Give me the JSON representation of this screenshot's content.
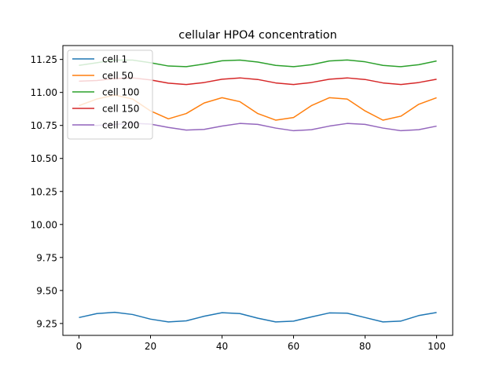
{
  "chart_data": {
    "type": "line",
    "title": "cellular HPO4 concentration",
    "xlabel": "",
    "ylabel": "",
    "xlim": [
      -4.5,
      104.5
    ],
    "ylim": [
      9.16,
      11.355
    ],
    "x_ticks": [
      0,
      20,
      40,
      60,
      80,
      100
    ],
    "y_ticks": [
      9.25,
      9.5,
      9.75,
      10.0,
      10.25,
      10.5,
      10.75,
      11.0,
      11.25
    ],
    "y_tick_labels": [
      "9.25",
      "9.50",
      "9.75",
      "10.00",
      "10.25",
      "10.50",
      "10.75",
      "11.00",
      "11.25"
    ],
    "grid": false,
    "legend_position": "upper-left",
    "series": [
      {
        "name": "cell 1",
        "color": "#1f77b4",
        "x": [
          0,
          5,
          10,
          15,
          20,
          25,
          30,
          35,
          40,
          45,
          50,
          55,
          60,
          65,
          70,
          75,
          80,
          85,
          90,
          95,
          100
        ],
        "y": [
          9.295,
          9.325,
          9.335,
          9.318,
          9.283,
          9.262,
          9.27,
          9.305,
          9.332,
          9.325,
          9.29,
          9.262,
          9.268,
          9.3,
          9.33,
          9.328,
          9.295,
          9.262,
          9.268,
          9.31,
          9.333
        ]
      },
      {
        "name": "cell 50",
        "color": "#ff7f0e",
        "x": [
          0,
          5,
          10,
          15,
          20,
          25,
          30,
          35,
          40,
          45,
          50,
          55,
          60,
          65,
          70,
          75,
          80,
          85,
          90,
          95,
          100
        ],
        "y": [
          10.9,
          10.95,
          10.98,
          10.95,
          10.86,
          10.8,
          10.84,
          10.92,
          10.96,
          10.93,
          10.84,
          10.79,
          10.81,
          10.9,
          10.96,
          10.95,
          10.86,
          10.79,
          10.82,
          10.91,
          10.96
        ]
      },
      {
        "name": "cell 100",
        "color": "#2ca02c",
        "x": [
          0,
          5,
          10,
          15,
          20,
          25,
          30,
          35,
          40,
          45,
          50,
          55,
          60,
          65,
          70,
          75,
          80,
          85,
          90,
          95,
          100
        ],
        "y": [
          11.205,
          11.225,
          11.245,
          11.245,
          11.225,
          11.2,
          11.195,
          11.215,
          11.24,
          11.245,
          11.23,
          11.205,
          11.195,
          11.21,
          11.238,
          11.246,
          11.232,
          11.205,
          11.195,
          11.21,
          11.238
        ]
      },
      {
        "name": "cell 150",
        "color": "#d62728",
        "x": [
          0,
          5,
          10,
          15,
          20,
          25,
          30,
          35,
          40,
          45,
          50,
          55,
          60,
          65,
          70,
          75,
          80,
          85,
          90,
          95,
          100
        ],
        "y": [
          11.085,
          11.09,
          11.105,
          11.11,
          11.095,
          11.07,
          11.06,
          11.075,
          11.1,
          11.11,
          11.098,
          11.072,
          11.06,
          11.075,
          11.1,
          11.11,
          11.098,
          11.072,
          11.06,
          11.075,
          11.1
        ]
      },
      {
        "name": "cell 200",
        "color": "#9467bd",
        "x": [
          0,
          5,
          10,
          15,
          20,
          25,
          30,
          35,
          40,
          45,
          50,
          55,
          60,
          65,
          70,
          75,
          80,
          85,
          90,
          95,
          100
        ],
        "y": [
          10.755,
          10.75,
          10.758,
          10.766,
          10.76,
          10.735,
          10.715,
          10.72,
          10.745,
          10.765,
          10.758,
          10.73,
          10.71,
          10.718,
          10.745,
          10.765,
          10.758,
          10.73,
          10.71,
          10.718,
          10.745
        ]
      }
    ]
  }
}
